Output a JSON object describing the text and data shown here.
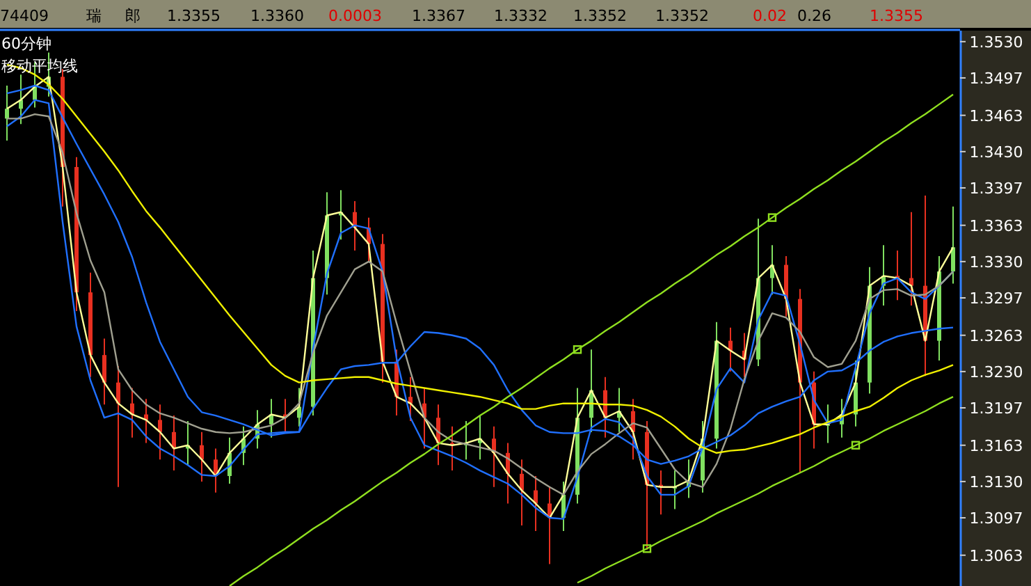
{
  "chart_data": {
    "type": "candlestick",
    "title": "60分钟",
    "subtitle": "移动平均线",
    "annotations": [
      "74409",
      "瑞",
      "郎",
      "1.3355",
      "1.3360",
      "0.0003",
      "1.3367",
      "1.3332",
      "1.3352",
      "1.3352",
      "0.02",
      "0.26",
      "1.3355"
    ],
    "categories": [
      null,
      null,
      null,
      null,
      null,
      null,
      null,
      null,
      null,
      null,
      null,
      null,
      null,
      null,
      null,
      null,
      null,
      null,
      null,
      null,
      null,
      null,
      null,
      null,
      null,
      null,
      null,
      null,
      null,
      null,
      null,
      null,
      null,
      null,
      null,
      null,
      null,
      null,
      null,
      null,
      null,
      null,
      null,
      null,
      null,
      null,
      null,
      null,
      null,
      null,
      null,
      null,
      null,
      null,
      null,
      null,
      null,
      null,
      null,
      null,
      null,
      null,
      null,
      null,
      null,
      null,
      null,
      null,
      null
    ],
    "ohlc": [
      [
        1.346,
        1.349,
        1.344,
        1.3469
      ],
      [
        1.3469,
        1.35,
        1.3455,
        1.3477
      ],
      [
        1.3477,
        1.3511,
        1.347,
        1.3489
      ],
      [
        1.3489,
        1.352,
        1.348,
        1.3498
      ],
      [
        1.3498,
        1.3505,
        1.338,
        1.3416
      ],
      [
        1.3416,
        1.3425,
        1.3285,
        1.3302
      ],
      [
        1.3302,
        1.332,
        1.3225,
        1.3245
      ],
      [
        1.3245,
        1.326,
        1.32,
        1.322
      ],
      [
        1.322,
        1.3235,
        1.3125,
        1.3201
      ],
      [
        1.3201,
        1.3215,
        1.317,
        1.3191
      ],
      [
        1.3191,
        1.3205,
        1.3165,
        1.3186
      ],
      [
        1.3186,
        1.32,
        1.315,
        1.3175
      ],
      [
        1.3175,
        1.319,
        1.314,
        1.316
      ],
      [
        1.316,
        1.3185,
        1.3145,
        1.3163
      ],
      [
        1.3163,
        1.3175,
        1.313,
        1.315
      ],
      [
        1.315,
        1.316,
        1.312,
        1.3135
      ],
      [
        1.3135,
        1.317,
        1.3128,
        1.3156
      ],
      [
        1.3156,
        1.318,
        1.3145,
        1.3169
      ],
      [
        1.3169,
        1.3195,
        1.316,
        1.3182
      ],
      [
        1.3182,
        1.3205,
        1.317,
        1.3191
      ],
      [
        1.3191,
        1.3205,
        1.3175,
        1.3188
      ],
      [
        1.3188,
        1.3215,
        1.318,
        1.3198
      ],
      [
        1.3198,
        1.334,
        1.319,
        1.3315
      ],
      [
        1.3315,
        1.3393,
        1.33,
        1.3372
      ],
      [
        1.3372,
        1.3395,
        1.335,
        1.3375
      ],
      [
        1.3375,
        1.3385,
        1.334,
        1.3361
      ],
      [
        1.3361,
        1.337,
        1.333,
        1.3346
      ],
      [
        1.3346,
        1.3355,
        1.322,
        1.3239
      ],
      [
        1.3239,
        1.325,
        1.319,
        1.3207
      ],
      [
        1.3207,
        1.3225,
        1.3185,
        1.3201
      ],
      [
        1.3201,
        1.3215,
        1.316,
        1.3188
      ],
      [
        1.3188,
        1.32,
        1.3145,
        1.3165
      ],
      [
        1.3165,
        1.318,
        1.314,
        1.3163
      ],
      [
        1.3163,
        1.3185,
        1.315,
        1.3165
      ],
      [
        1.3165,
        1.319,
        1.315,
        1.3169
      ],
      [
        1.3169,
        1.318,
        1.3125,
        1.3156
      ],
      [
        1.3156,
        1.3165,
        1.311,
        1.3137
      ],
      [
        1.3137,
        1.315,
        1.309,
        1.3122
      ],
      [
        1.3122,
        1.3135,
        1.3085,
        1.311
      ],
      [
        1.311,
        1.3125,
        1.3055,
        1.3097
      ],
      [
        1.3097,
        1.313,
        1.3085,
        1.3118
      ],
      [
        1.3118,
        1.3215,
        1.311,
        1.3188
      ],
      [
        1.3188,
        1.325,
        1.3175,
        1.3213
      ],
      [
        1.3213,
        1.3225,
        1.317,
        1.3188
      ],
      [
        1.3188,
        1.3215,
        1.3175,
        1.3194
      ],
      [
        1.3194,
        1.3205,
        1.315,
        1.3175
      ],
      [
        1.3175,
        1.3185,
        1.3068,
        1.3127
      ],
      [
        1.3127,
        1.314,
        1.31,
        1.3125
      ],
      [
        1.3125,
        1.314,
        1.3105,
        1.3125
      ],
      [
        1.3125,
        1.315,
        1.3115,
        1.3131
      ],
      [
        1.3131,
        1.3185,
        1.312,
        1.3169
      ],
      [
        1.3169,
        1.3275,
        1.316,
        1.3258
      ],
      [
        1.3258,
        1.327,
        1.323,
        1.3249
      ],
      [
        1.3249,
        1.3265,
        1.3225,
        1.3241
      ],
      [
        1.3241,
        1.3369,
        1.3235,
        1.3315
      ],
      [
        1.3315,
        1.3345,
        1.33,
        1.3327
      ],
      [
        1.3327,
        1.3335,
        1.328,
        1.3296
      ],
      [
        1.3296,
        1.3305,
        1.3138,
        1.322
      ],
      [
        1.322,
        1.323,
        1.316,
        1.3182
      ],
      [
        1.3182,
        1.32,
        1.3165,
        1.3182
      ],
      [
        1.3182,
        1.3205,
        1.317,
        1.3191
      ],
      [
        1.3191,
        1.324,
        1.318,
        1.322
      ],
      [
        1.322,
        1.3325,
        1.321,
        1.3308
      ],
      [
        1.3308,
        1.3345,
        1.329,
        1.3317
      ],
      [
        1.3317,
        1.334,
        1.3295,
        1.3315
      ],
      [
        1.3315,
        1.3375,
        1.329,
        1.3308
      ],
      [
        1.3308,
        1.339,
        1.3226,
        1.3258
      ],
      [
        1.3258,
        1.3335,
        1.324,
        1.3321
      ],
      [
        1.3321,
        1.338,
        1.331,
        1.3343
      ]
    ],
    "colors": [
      "#80e060",
      "#80e060",
      "#80e060",
      "#80e060",
      "#e83020",
      "#e83020",
      "#e83020",
      "#e83020",
      "#e83020",
      "#e83020",
      "#e83020",
      "#e83020",
      "#e83020",
      "#80e060",
      "#e83020",
      "#e83020",
      "#80e060",
      "#80e060",
      "#80e060",
      "#80e060",
      "#e83020",
      "#80e060",
      "#80e060",
      "#80e060",
      "#80e060",
      "#e83020",
      "#e83020",
      "#e83020",
      "#e83020",
      "#e83020",
      "#e83020",
      "#e83020",
      "#e83020",
      "#80e060",
      "#80e060",
      "#e83020",
      "#e83020",
      "#e83020",
      "#e83020",
      "#e83020",
      "#80e060",
      "#80e060",
      "#80e060",
      "#e83020",
      "#80e060",
      "#e83020",
      "#e83020",
      "#e83020",
      "#80e060",
      "#80e060",
      "#80e060",
      "#80e060",
      "#e83020",
      "#e83020",
      "#80e060",
      "#80e060",
      "#e83020",
      "#e83020",
      "#e83020",
      "#80e060",
      "#80e060",
      "#80e060",
      "#80e060",
      "#80e060",
      "#e83020",
      "#e83020",
      "#e83020",
      "#80e060",
      "#80e060"
    ],
    "series": [
      {
        "type": "line",
        "color": "#ffff99",
        "values": [
          1.3469,
          1.3477,
          1.3489,
          1.3498,
          1.3416,
          1.3302,
          1.3245,
          1.322,
          1.3201,
          1.3191,
          1.3186,
          1.3175,
          1.316,
          1.3163,
          1.315,
          1.3135,
          1.3156,
          1.3169,
          1.3182,
          1.3191,
          1.3188,
          1.3198,
          1.3315,
          1.3372,
          1.3375,
          1.3361,
          1.3346,
          1.3239,
          1.3207,
          1.3201,
          1.3188,
          1.3165,
          1.3163,
          1.3165,
          1.3169,
          1.3156,
          1.3137,
          1.3122,
          1.311,
          1.3097,
          1.3118,
          1.3188,
          1.3213,
          1.3188,
          1.3194,
          1.3175,
          1.3127,
          1.3125,
          1.3125,
          1.3131,
          1.3169,
          1.3258,
          1.3249,
          1.3241,
          1.3315,
          1.3327,
          1.3296,
          1.322,
          1.3182,
          1.3182,
          1.3191,
          1.322,
          1.3308,
          1.3317,
          1.3315,
          1.3308,
          1.3258,
          1.3321,
          1.3343
        ]
      },
      {
        "type": "line",
        "color": "#2070ff",
        "values": [
          1.3453,
          1.3462,
          1.3477,
          1.3474,
          1.3366,
          1.3271,
          1.3222,
          1.3188,
          1.3192,
          1.3186,
          1.3171,
          1.316,
          1.3153,
          1.3145,
          1.3136,
          1.3135,
          1.3144,
          1.3159,
          1.3173,
          1.3174,
          1.3175,
          1.3175,
          1.3251,
          1.3319,
          1.3356,
          1.3363,
          1.336,
          1.3321,
          1.3242,
          1.3188,
          1.3163,
          1.3158,
          1.3153,
          1.3147,
          1.314,
          1.3134,
          1.3128,
          1.3118,
          1.3106,
          1.3097,
          1.3096,
          1.3134,
          1.3179,
          1.3187,
          1.3184,
          1.3169,
          1.3135,
          1.3118,
          1.3118,
          1.3126,
          1.3161,
          1.3214,
          1.3233,
          1.322,
          1.3277,
          1.3302,
          1.3299,
          1.3255,
          1.3204,
          1.3183,
          1.3186,
          1.3234,
          1.3283,
          1.331,
          1.3315,
          1.3302,
          1.3296,
          1.3308,
          1.3321
        ]
      },
      {
        "type": "line",
        "color": "#a0a090",
        "values": [
          1.346,
          1.346,
          1.3464,
          1.3462,
          1.3429,
          1.3374,
          1.3331,
          1.3302,
          1.3232,
          1.3213,
          1.32,
          1.3192,
          1.3188,
          1.3183,
          1.3178,
          1.3175,
          1.3174,
          1.3175,
          1.3178,
          1.3181,
          1.3188,
          1.3201,
          1.3247,
          1.3281,
          1.3302,
          1.3323,
          1.333,
          1.3321,
          1.3274,
          1.323,
          1.3188,
          1.3175,
          1.3167,
          1.3164,
          1.3161,
          1.3158,
          1.3151,
          1.3142,
          1.3133,
          1.3125,
          1.3118,
          1.3139,
          1.3155,
          1.3164,
          1.3174,
          1.3183,
          1.3179,
          1.316,
          1.3141,
          1.3129,
          1.3125,
          1.3146,
          1.3178,
          1.3223,
          1.3258,
          1.3283,
          1.3279,
          1.3266,
          1.3243,
          1.3234,
          1.3237,
          1.3258,
          1.3296,
          1.3304,
          1.3305,
          1.3299,
          1.33,
          1.3308,
          1.3321
        ]
      },
      {
        "type": "line",
        "color": "#2070ff",
        "values": [
          1.3483,
          1.3486,
          1.349,
          1.3486,
          1.3461,
          1.3437,
          1.3414,
          1.3391,
          1.3366,
          1.3334,
          1.3293,
          1.3257,
          1.3232,
          1.3207,
          1.3193,
          1.319,
          1.3186,
          1.3182,
          1.3177,
          1.3172,
          1.3174,
          1.3175,
          1.3196,
          1.3215,
          1.3232,
          1.3235,
          1.3236,
          1.3238,
          1.3238,
          1.3253,
          1.3266,
          1.3265,
          1.3263,
          1.326,
          1.3251,
          1.3236,
          1.3213,
          1.3195,
          1.3181,
          1.3175,
          1.3174,
          1.3174,
          1.3177,
          1.3176,
          1.3171,
          1.3163,
          1.315,
          1.3146,
          1.3149,
          1.3153,
          1.316,
          1.3166,
          1.3172,
          1.3181,
          1.3192,
          1.3198,
          1.3203,
          1.3207,
          1.3222,
          1.323,
          1.3231,
          1.3238,
          1.3249,
          1.3257,
          1.3262,
          1.3265,
          1.3267,
          1.3269,
          1.327
        ]
      },
      {
        "type": "line",
        "color": "#f0f000",
        "values": [
          1.3509,
          1.3506,
          1.35,
          1.3491,
          1.3478,
          1.3462,
          1.3446,
          1.343,
          1.3413,
          1.3394,
          1.3376,
          1.3361,
          1.3345,
          1.3329,
          1.3313,
          1.3297,
          1.3281,
          1.3266,
          1.3251,
          1.3236,
          1.3226,
          1.322,
          1.3222,
          1.3223,
          1.3224,
          1.3225,
          1.3225,
          1.3222,
          1.3219,
          1.3217,
          1.3215,
          1.3213,
          1.3211,
          1.3209,
          1.3207,
          1.3204,
          1.3201,
          1.3196,
          1.3196,
          1.3199,
          1.3201,
          1.3201,
          1.3201,
          1.32,
          1.32,
          1.3199,
          1.3195,
          1.3189,
          1.318,
          1.3169,
          1.3161,
          1.3156,
          1.3158,
          1.3159,
          1.3162,
          1.3165,
          1.3169,
          1.3173,
          1.3179,
          1.3184,
          1.3189,
          1.3194,
          1.3198,
          1.3206,
          1.3215,
          1.3222,
          1.3227,
          1.3231,
          1.3236
        ]
      },
      {
        "type": "line",
        "color": "#90e020",
        "values": [
          null,
          null,
          null,
          null,
          null,
          null,
          null,
          null,
          null,
          null,
          null,
          null,
          null,
          null,
          null,
          null,
          1.3035,
          1.3044,
          1.3052,
          1.3061,
          1.3069,
          1.3078,
          1.3087,
          1.3095,
          1.3104,
          1.3112,
          1.3121,
          1.313,
          1.3138,
          1.3147,
          1.3155,
          1.3164,
          1.3172,
          1.3181,
          1.319,
          1.3198,
          1.3207,
          1.3215,
          1.3224,
          1.3233,
          1.3241,
          1.325,
          1.3258,
          1.3267,
          1.3275,
          1.3284,
          1.3293,
          1.3301,
          1.331,
          1.3318,
          1.3327,
          1.3336,
          1.3344,
          1.3353,
          1.3361,
          1.337,
          1.3379,
          1.3387,
          1.3396,
          1.3404,
          1.3413,
          1.3421,
          1.343,
          1.3439,
          1.3447,
          1.3456,
          1.3464,
          1.3473,
          1.3482
        ]
      },
      {
        "type": "line",
        "color": "#90e020",
        "values": [
          null,
          null,
          null,
          null,
          null,
          null,
          null,
          null,
          null,
          null,
          null,
          null,
          null,
          null,
          null,
          null,
          null,
          null,
          null,
          null,
          null,
          null,
          null,
          null,
          null,
          null,
          null,
          null,
          null,
          null,
          null,
          null,
          null,
          null,
          null,
          null,
          null,
          null,
          null,
          null,
          null,
          1.3038,
          1.3044,
          1.3051,
          1.3057,
          1.3063,
          1.3069,
          1.3076,
          1.3082,
          1.3088,
          1.3094,
          1.3101,
          1.3107,
          1.3113,
          1.3119,
          1.3126,
          1.3132,
          1.3138,
          1.3144,
          1.3151,
          1.3157,
          1.3163,
          1.3169,
          1.3176,
          1.3182,
          1.3188,
          1.3194,
          1.3201,
          1.3207
        ]
      },
      {
        "type": "scatter",
        "color": "#90e020",
        "marker": "square",
        "values": [
          null,
          null,
          null,
          null,
          null,
          null,
          null,
          null,
          null,
          null,
          null,
          null,
          null,
          null,
          null,
          null,
          null,
          null,
          null,
          null,
          null,
          null,
          null,
          null,
          null,
          null,
          null,
          null,
          null,
          null,
          null,
          null,
          null,
          null,
          null,
          null,
          null,
          null,
          null,
          null,
          null,
          1.325,
          null,
          null,
          null,
          null,
          1.3069,
          null,
          null,
          null,
          null,
          null,
          null,
          null,
          null,
          1.337,
          null,
          null,
          null,
          null,
          null,
          1.3163,
          null,
          null,
          null,
          null,
          null,
          null,
          null
        ]
      }
    ],
    "ylim": [
      1.3035,
      1.354
    ],
    "yticks": [
      {
        "value": 1.353,
        "label": "1.3530"
      },
      {
        "value": 1.3497,
        "label": "1.3497"
      },
      {
        "value": 1.3463,
        "label": "1.3463"
      },
      {
        "value": 1.343,
        "label": "1.3430"
      },
      {
        "value": 1.3397,
        "label": "1.3397"
      },
      {
        "value": 1.3363,
        "label": "1.3363"
      },
      {
        "value": 1.333,
        "label": "1.3330"
      },
      {
        "value": 1.3297,
        "label": "1.3297"
      },
      {
        "value": 1.3263,
        "label": "1.3263"
      },
      {
        "value": 1.323,
        "label": "1.3230"
      },
      {
        "value": 1.3197,
        "label": "1.3197"
      },
      {
        "value": 1.3163,
        "label": "1.3163"
      },
      {
        "value": 1.313,
        "label": "1.3130"
      },
      {
        "value": 1.3097,
        "label": "1.3097"
      },
      {
        "value": 1.3063,
        "label": "1.3063"
      }
    ],
    "tick_labels": "y"
  }
}
